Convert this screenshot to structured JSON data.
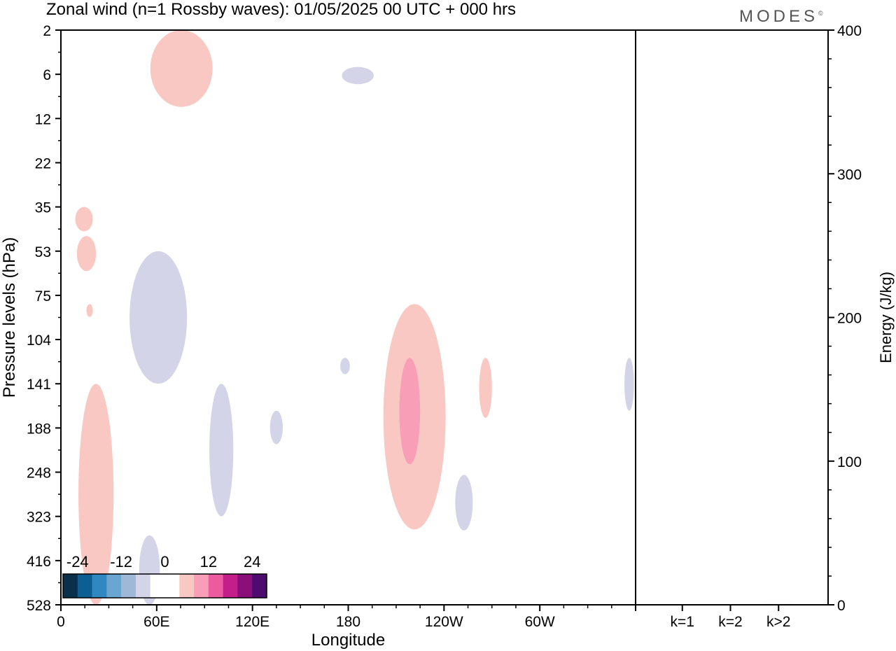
{
  "title": "Zonal wind (n=1 Rossby waves):  01/05/2025  00 UTC  + 000 hrs",
  "brand": "MODES",
  "chart_data": [
    {
      "type": "heatmap",
      "xlabel": "Longitude",
      "ylabel": "Pressure levels (hPa)",
      "x_ticks": [
        "0",
        "60E",
        "120E",
        "180",
        "120W",
        "60W"
      ],
      "x_tick_lon": [
        0,
        60,
        120,
        180,
        240,
        300
      ],
      "xlim": [
        0,
        360
      ],
      "y_ticks": [
        "2",
        "6",
        "12",
        "22",
        "35",
        "53",
        "75",
        "104",
        "141",
        "188",
        "248",
        "323",
        "416",
        "528"
      ],
      "colorbar": {
        "labels": [
          "-24",
          "-12",
          "0",
          "12",
          "24"
        ],
        "colors": [
          "#08304a",
          "#0c5f92",
          "#2f88c0",
          "#6aa7d0",
          "#9fb8d8",
          "#d3d4e7",
          "#ffffff",
          "#ffffff",
          "#f9c8c3",
          "#f89eb6",
          "#ec5aa0",
          "#c41e8a",
          "#8a0f78",
          "#4e0c6e"
        ]
      },
      "regions": [
        {
          "sign": "positive",
          "level": 1,
          "lon_range": [
            56,
            95
          ],
          "pressure_range": [
            "2",
            "10"
          ]
        },
        {
          "sign": "negative",
          "level": 1,
          "lon_range": [
            176,
            196
          ],
          "pressure_range": [
            "5",
            "7"
          ]
        },
        {
          "sign": "positive",
          "level": 1,
          "lon_range": [
            9,
            20
          ],
          "pressure_range": [
            "35",
            "44"
          ]
        },
        {
          "sign": "positive",
          "level": 1,
          "lon_range": [
            10,
            22
          ],
          "pressure_range": [
            "46",
            "62"
          ]
        },
        {
          "sign": "positive",
          "level": 1,
          "lon_range": [
            16,
            20
          ],
          "pressure_range": [
            "80",
            "88"
          ]
        },
        {
          "sign": "negative",
          "level": 1,
          "lon_range": [
            43,
            79
          ],
          "pressure_range": [
            "53",
            "141"
          ]
        },
        {
          "sign": "positive",
          "level": 1,
          "lon_range": [
            11,
            33
          ],
          "pressure_range": [
            "141",
            "528"
          ]
        },
        {
          "sign": "negative",
          "level": 1,
          "lon_range": [
            93,
            108
          ],
          "pressure_range": [
            "141",
            "323"
          ]
        },
        {
          "sign": "negative",
          "level": 1,
          "lon_range": [
            131,
            139
          ],
          "pressure_range": [
            "168",
            "208"
          ]
        },
        {
          "sign": "negative",
          "level": 1,
          "lon_range": [
            175,
            181
          ],
          "pressure_range": [
            "118",
            "132"
          ]
        },
        {
          "sign": "negative",
          "level": 1,
          "lon_range": [
            49,
            62
          ],
          "pressure_range": [
            "360",
            "528"
          ]
        },
        {
          "sign": "positive",
          "level": 1,
          "lon_range": [
            202,
            241
          ],
          "pressure_range": [
            "80",
            "348"
          ]
        },
        {
          "sign": "positive",
          "level": 2,
          "lon_range": [
            212,
            225
          ],
          "pressure_range": [
            "118",
            "236"
          ]
        },
        {
          "sign": "negative",
          "level": 1,
          "lon_range": [
            247,
            258
          ],
          "pressure_range": [
            "252",
            "350"
          ]
        },
        {
          "sign": "positive",
          "level": 1,
          "lon_range": [
            262,
            270
          ],
          "pressure_range": [
            "118",
            "176"
          ]
        },
        {
          "sign": "negative",
          "level": 1,
          "lon_range": [
            353,
            359
          ],
          "pressure_range": [
            "118",
            "168"
          ]
        }
      ]
    },
    {
      "type": "bar",
      "categories": [
        "k=1",
        "k=2",
        "k>2"
      ],
      "values": [
        0.3,
        0.3,
        0.5
      ],
      "ylabel": "Energy (J/kg)",
      "ylim": [
        0,
        400
      ],
      "y_ticks": [
        "0",
        "100",
        "200",
        "300",
        "400"
      ],
      "y_tick_values": [
        0,
        100,
        200,
        300,
        400
      ]
    }
  ],
  "colors": {
    "positive_light": "#f9c8c3",
    "positive_medium": "#f89eb6",
    "negative_light": "#d3d4e7",
    "axis": "#000000"
  }
}
